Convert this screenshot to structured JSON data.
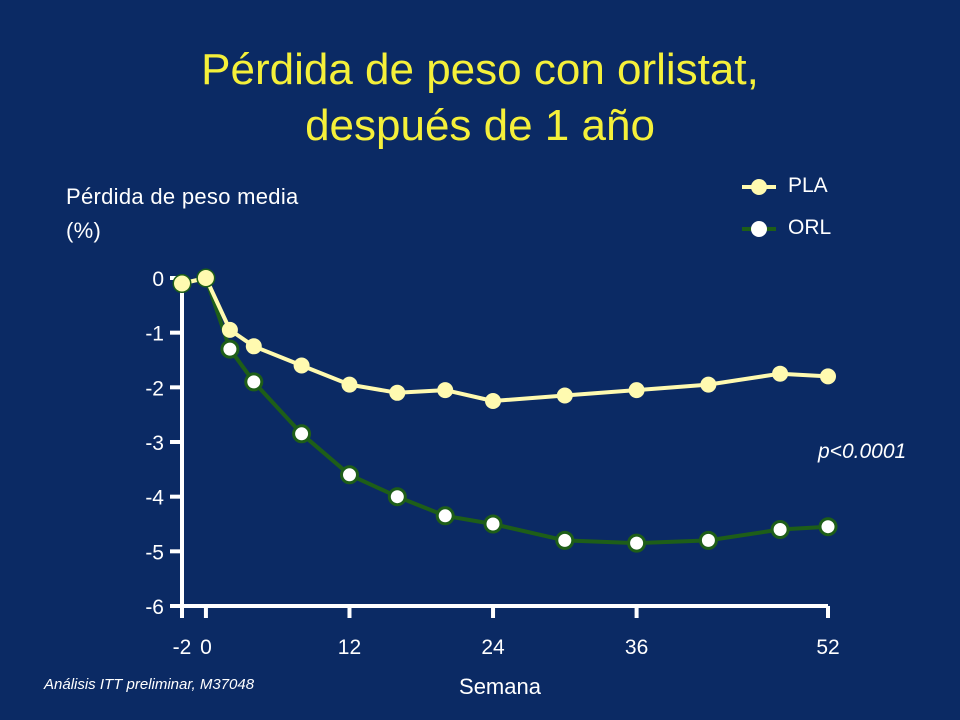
{
  "title_line1": "Pérdida de peso con orlistat,",
  "title_line2": "después de 1 año",
  "footnote": "Análisis ITT preliminar, M37048",
  "colors": {
    "background": "#0b2a64",
    "title": "#f5f03a",
    "PLA": "#fffab0",
    "ORL": "#1e5e18",
    "ORL_marker": "#ffffff"
  },
  "chart_data": {
    "type": "line",
    "ylabel_line1": "Pérdida de peso media",
    "ylabel_line2": "(%)",
    "xlabel": "Semana",
    "annotation": "p<0.0001",
    "xlim": [
      -2,
      52
    ],
    "ylim": [
      -6,
      0
    ],
    "xticks": [
      -2,
      0,
      12,
      24,
      36,
      52
    ],
    "xtick_labels": [
      "-2",
      "0",
      "12",
      "24",
      "36",
      "52"
    ],
    "yticks": [
      0,
      -1,
      -2,
      -3,
      -4,
      -5,
      -6
    ],
    "ytick_labels": [
      "0",
      "-1",
      "-2",
      "-3",
      "-4",
      "-5",
      "-6"
    ],
    "legend_position": "top-right",
    "series": [
      {
        "name": "PLA",
        "x": [
          -2,
          0,
          2,
          4,
          8,
          12,
          16,
          20,
          24,
          30,
          36,
          42,
          48,
          52
        ],
        "y": [
          -0.1,
          0.0,
          -0.95,
          -1.25,
          -1.6,
          -1.95,
          -2.1,
          -2.05,
          -2.25,
          -2.15,
          -2.05,
          -1.95,
          -1.75,
          -1.8
        ]
      },
      {
        "name": "ORL",
        "x": [
          -2,
          0,
          2,
          4,
          8,
          12,
          16,
          20,
          24,
          30,
          36,
          42,
          48,
          52
        ],
        "y": [
          -0.1,
          0.0,
          -1.3,
          -1.9,
          -2.85,
          -3.6,
          -4.0,
          -4.35,
          -4.5,
          -4.8,
          -4.85,
          -4.8,
          -4.6,
          -4.55
        ]
      }
    ]
  }
}
